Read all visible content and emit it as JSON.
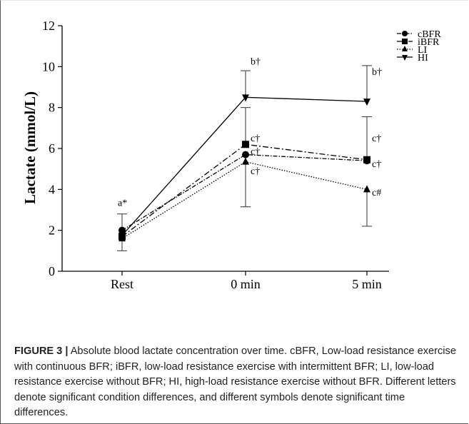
{
  "chart_data": {
    "type": "line",
    "categories": [
      "Rest",
      "0 min",
      "5 min"
    ],
    "ylabel": "Lactate  (mmol/L)",
    "xlabel": "",
    "ylim": [
      0,
      12
    ],
    "yticks": [
      0,
      2,
      4,
      6,
      8,
      10,
      12
    ],
    "legend_position": "top-right",
    "grid": false,
    "series": [
      {
        "name": "cBFR",
        "values": [
          2.0,
          5.7,
          5.4
        ],
        "err_up": [
          0,
          0,
          0
        ],
        "err_down": [
          0,
          0,
          0
        ],
        "marker": "circle",
        "dash": "6,2,1.5,2"
      },
      {
        "name": "iBFR",
        "values": [
          1.7,
          6.2,
          5.45
        ],
        "err_up": [
          0,
          1.8,
          2.1
        ],
        "err_down": [
          0,
          0,
          0
        ],
        "marker": "square",
        "dash": "8,3,2,3"
      },
      {
        "name": "LI",
        "values": [
          1.6,
          5.35,
          4.0
        ],
        "err_up": [
          0,
          0,
          0
        ],
        "err_down": [
          0,
          2.2,
          1.8
        ],
        "marker": "triangle-up",
        "dash": "1.5,2"
      },
      {
        "name": "HI",
        "values": [
          1.75,
          8.5,
          8.3
        ],
        "err_up": [
          1.05,
          1.3,
          1.75
        ],
        "err_down": [
          0.75,
          0,
          0
        ],
        "marker": "triangle-down",
        "dash": ""
      }
    ],
    "annotations": [
      {
        "text": "a*",
        "x": 0,
        "y": 3.2
      },
      {
        "text": "b†",
        "x": 1,
        "y": 10.1
      },
      {
        "text": "c†",
        "x": 1,
        "y": 6.35
      },
      {
        "text": "c†",
        "x": 1,
        "y": 5.7
      },
      {
        "text": "c†",
        "x": 1,
        "y": 4.75
      },
      {
        "text": "b†",
        "x": 2,
        "y": 9.6
      },
      {
        "text": "c†",
        "x": 2,
        "y": 6.35
      },
      {
        "text": "c†",
        "x": 2,
        "y": 5.1
      },
      {
        "text": "c#",
        "x": 2,
        "y": 3.7
      }
    ]
  },
  "caption": {
    "label": "FIGURE 3 |",
    "text": " Absolute blood lactate concentration over time. cBFR, Low-load resistance exercise with continuous BFR; iBFR, low-load resistance exercise with intermittent BFR; LI, low-load resistance exercise without BFR; HI, high-load resistance exercise without BFR. Different letters denote significant condition differences, and different symbols denote significant time differences."
  }
}
